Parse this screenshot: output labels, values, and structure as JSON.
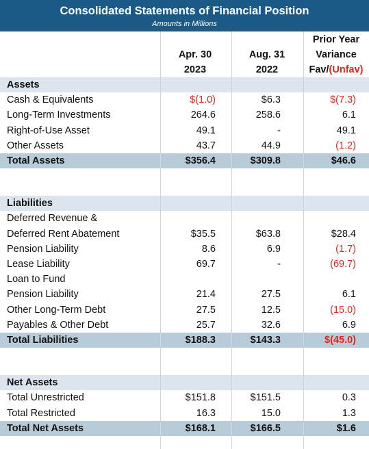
{
  "header": {
    "title": "Consolidated Statements of Financial Position",
    "subtitle": "Amounts in Millions"
  },
  "columns": [
    {
      "lines": [
        "Apr. 30",
        "2023"
      ]
    },
    {
      "lines": [
        "Aug. 31",
        "2022"
      ]
    },
    {
      "lines": [
        "Prior Year",
        "Variance"
      ],
      "last": [
        "Fav/",
        "(Unfav)"
      ]
    }
  ],
  "sections": [
    {
      "title": "Assets",
      "rows": [
        {
          "label": [
            "Cash & Equivalents"
          ],
          "values": [
            "$(1.0)",
            "$6.3",
            "$(7.3)"
          ]
        },
        {
          "label": [
            "Long-Term Investments"
          ],
          "values": [
            "264.6",
            "258.6",
            "6.1"
          ]
        },
        {
          "label": [
            "Right-of-Use Asset"
          ],
          "values": [
            "49.1",
            "-",
            "49.1"
          ]
        },
        {
          "label": [
            "Other Assets"
          ],
          "values": [
            "43.7",
            "44.9",
            "(1.2)"
          ]
        }
      ],
      "total": {
        "label": "Total Assets",
        "values": [
          "$356.4",
          "$309.8",
          "$46.6"
        ]
      }
    },
    {
      "title": "Liabilities",
      "rows": [
        {
          "label": [
            "Deferred Revenue &",
            "Deferred Rent Abatement"
          ],
          "values": [
            "$35.5",
            "$63.8",
            "$28.4"
          ]
        },
        {
          "label": [
            "Pension Liability"
          ],
          "values": [
            "8.6",
            "6.9",
            "(1.7)"
          ]
        },
        {
          "label": [
            "Lease Liability"
          ],
          "values": [
            "69.7",
            "-",
            "(69.7)"
          ]
        },
        {
          "label": [
            "Loan to Fund",
            "Pension Liability"
          ],
          "values": [
            "21.4",
            "27.5",
            "6.1"
          ]
        },
        {
          "label": [
            "Other Long-Term Debt"
          ],
          "values": [
            "27.5",
            "12.5",
            "(15.0)"
          ]
        },
        {
          "label": [
            "Payables & Other Debt"
          ],
          "values": [
            "25.7",
            "32.6",
            "6.9"
          ]
        }
      ],
      "total": {
        "label": "Total Liabilities",
        "values": [
          "$188.3",
          "$143.3",
          "$(45.0)"
        ]
      }
    },
    {
      "title": "Net Assets",
      "rows": [
        {
          "label": [
            "Total Unrestricted"
          ],
          "values": [
            "$151.8",
            "$151.5",
            "0.3"
          ]
        },
        {
          "label": [
            "Total Restricted"
          ],
          "values": [
            "16.3",
            "15.0",
            "1.3"
          ]
        }
      ],
      "total": {
        "label": "Total Net Assets",
        "values": [
          "$168.1",
          "$166.5",
          "$1.6"
        ]
      }
    }
  ]
}
